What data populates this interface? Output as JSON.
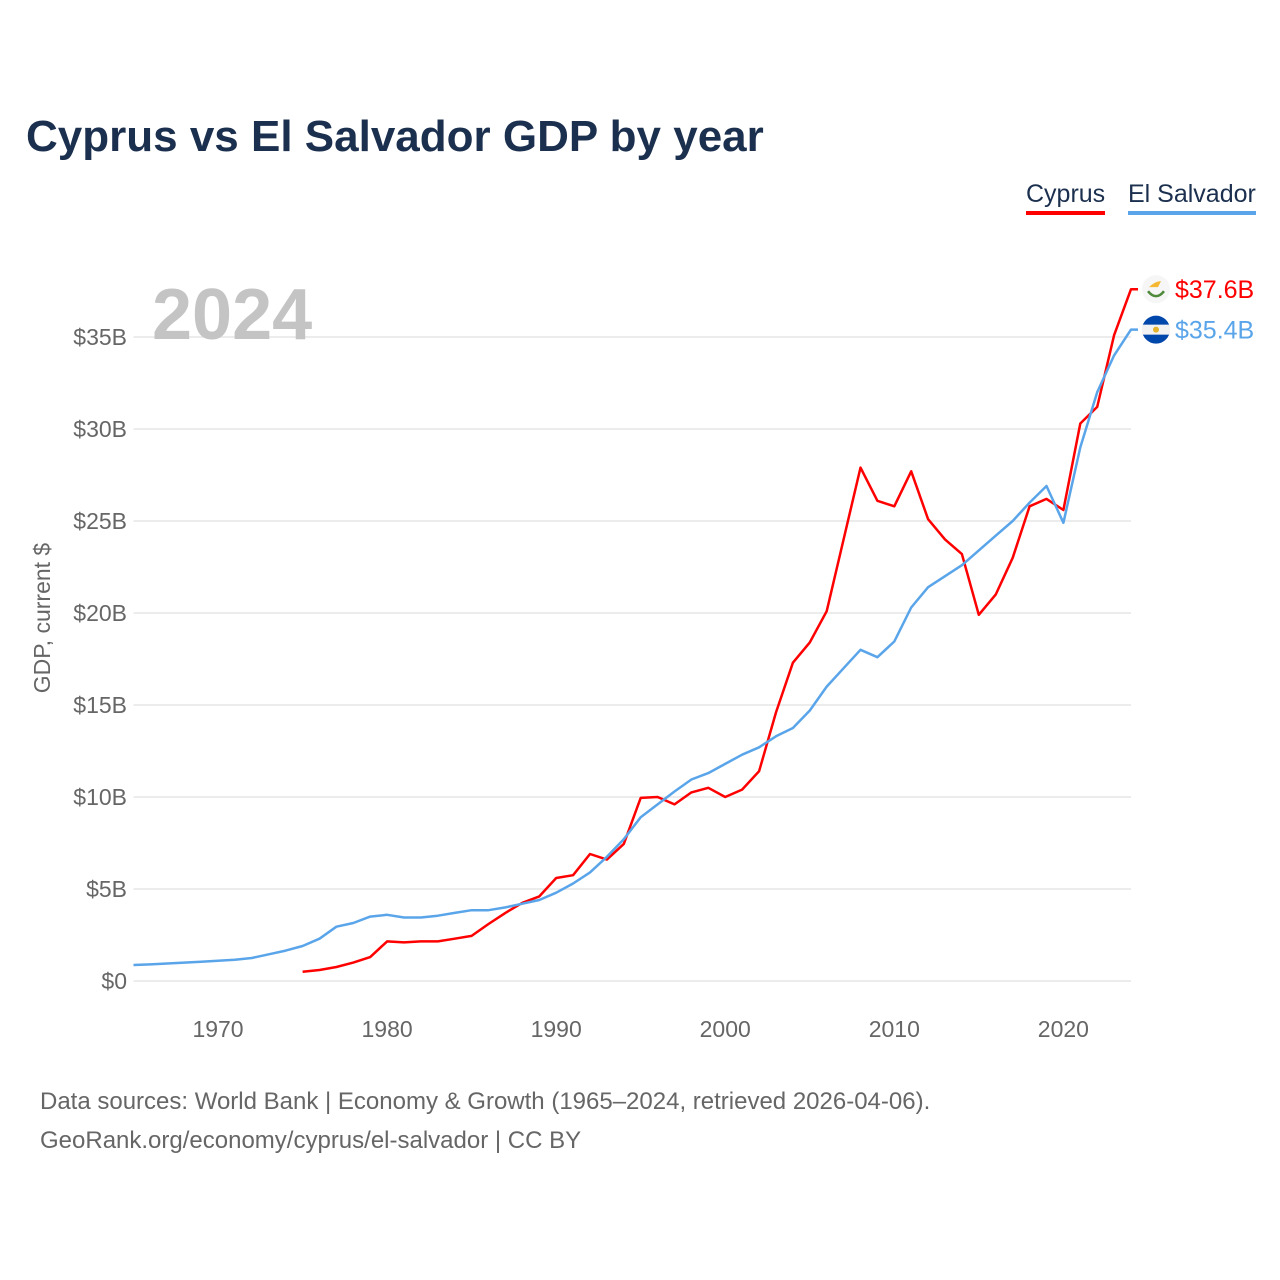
{
  "chart_data": {
    "type": "line",
    "title": "Cyprus vs El Salvador GDP by year",
    "ylabel": "GDP, current $",
    "xlabel": "",
    "current_year_label": "2024",
    "xlim": [
      1965,
      2024
    ],
    "ylim": [
      0,
      37.6
    ],
    "x_ticks": [
      1970,
      1980,
      1990,
      2000,
      2010,
      2020
    ],
    "y_ticks": [
      0,
      5,
      10,
      15,
      20,
      25,
      30,
      35
    ],
    "y_tick_labels": [
      "$0",
      "$5B",
      "$10B",
      "$15B",
      "$20B",
      "$25B",
      "$30B",
      "$35B"
    ],
    "grid": true,
    "legend_position": "top-right",
    "series": [
      {
        "name": "Cyprus",
        "color": "#ff0000",
        "start_year": 1975,
        "end_label": "$37.6B",
        "flag": "cyprus-flag",
        "values": [
          0.5,
          0.6,
          0.76,
          1.0,
          1.3,
          2.15,
          2.1,
          2.15,
          2.15,
          2.3,
          2.45,
          3.1,
          3.7,
          4.25,
          4.6,
          5.6,
          5.75,
          6.9,
          6.6,
          7.45,
          9.95,
          10.0,
          9.6,
          10.25,
          10.5,
          10.0,
          10.4,
          11.4,
          14.6,
          17.3,
          18.4,
          20.1,
          24.0,
          27.9,
          26.1,
          25.8,
          27.7,
          25.1,
          24.0,
          23.2,
          19.9,
          21.0,
          23.0,
          25.8,
          26.2,
          25.6,
          30.3,
          31.2,
          35.1,
          37.6
        ]
      },
      {
        "name": "El Salvador",
        "color": "#5aa5ea",
        "start_year": 1965,
        "end_label": "$35.4B",
        "flag": "el-salvador-flag",
        "values": [
          0.87,
          0.9,
          0.95,
          1.0,
          1.05,
          1.1,
          1.15,
          1.25,
          1.45,
          1.65,
          1.9,
          2.3,
          2.95,
          3.15,
          3.5,
          3.6,
          3.45,
          3.45,
          3.55,
          3.7,
          3.85,
          3.85,
          4.0,
          4.2,
          4.4,
          4.8,
          5.3,
          5.9,
          6.75,
          7.7,
          8.9,
          9.6,
          10.3,
          10.95,
          11.3,
          11.8,
          12.3,
          12.7,
          13.3,
          13.75,
          14.7,
          16.0,
          17.0,
          18.0,
          17.6,
          18.45,
          20.3,
          21.4,
          22.0,
          22.6,
          23.4,
          24.2,
          25.0,
          26.0,
          26.9,
          24.9,
          29.0,
          32.0,
          34.0,
          35.4
        ]
      }
    ]
  },
  "footer": {
    "line1": "Data sources: World Bank | Economy & Growth (1965–2024, retrieved 2026-04-06).",
    "line2": "GeoRank.org/economy/cyprus/el-salvador | CC BY"
  }
}
